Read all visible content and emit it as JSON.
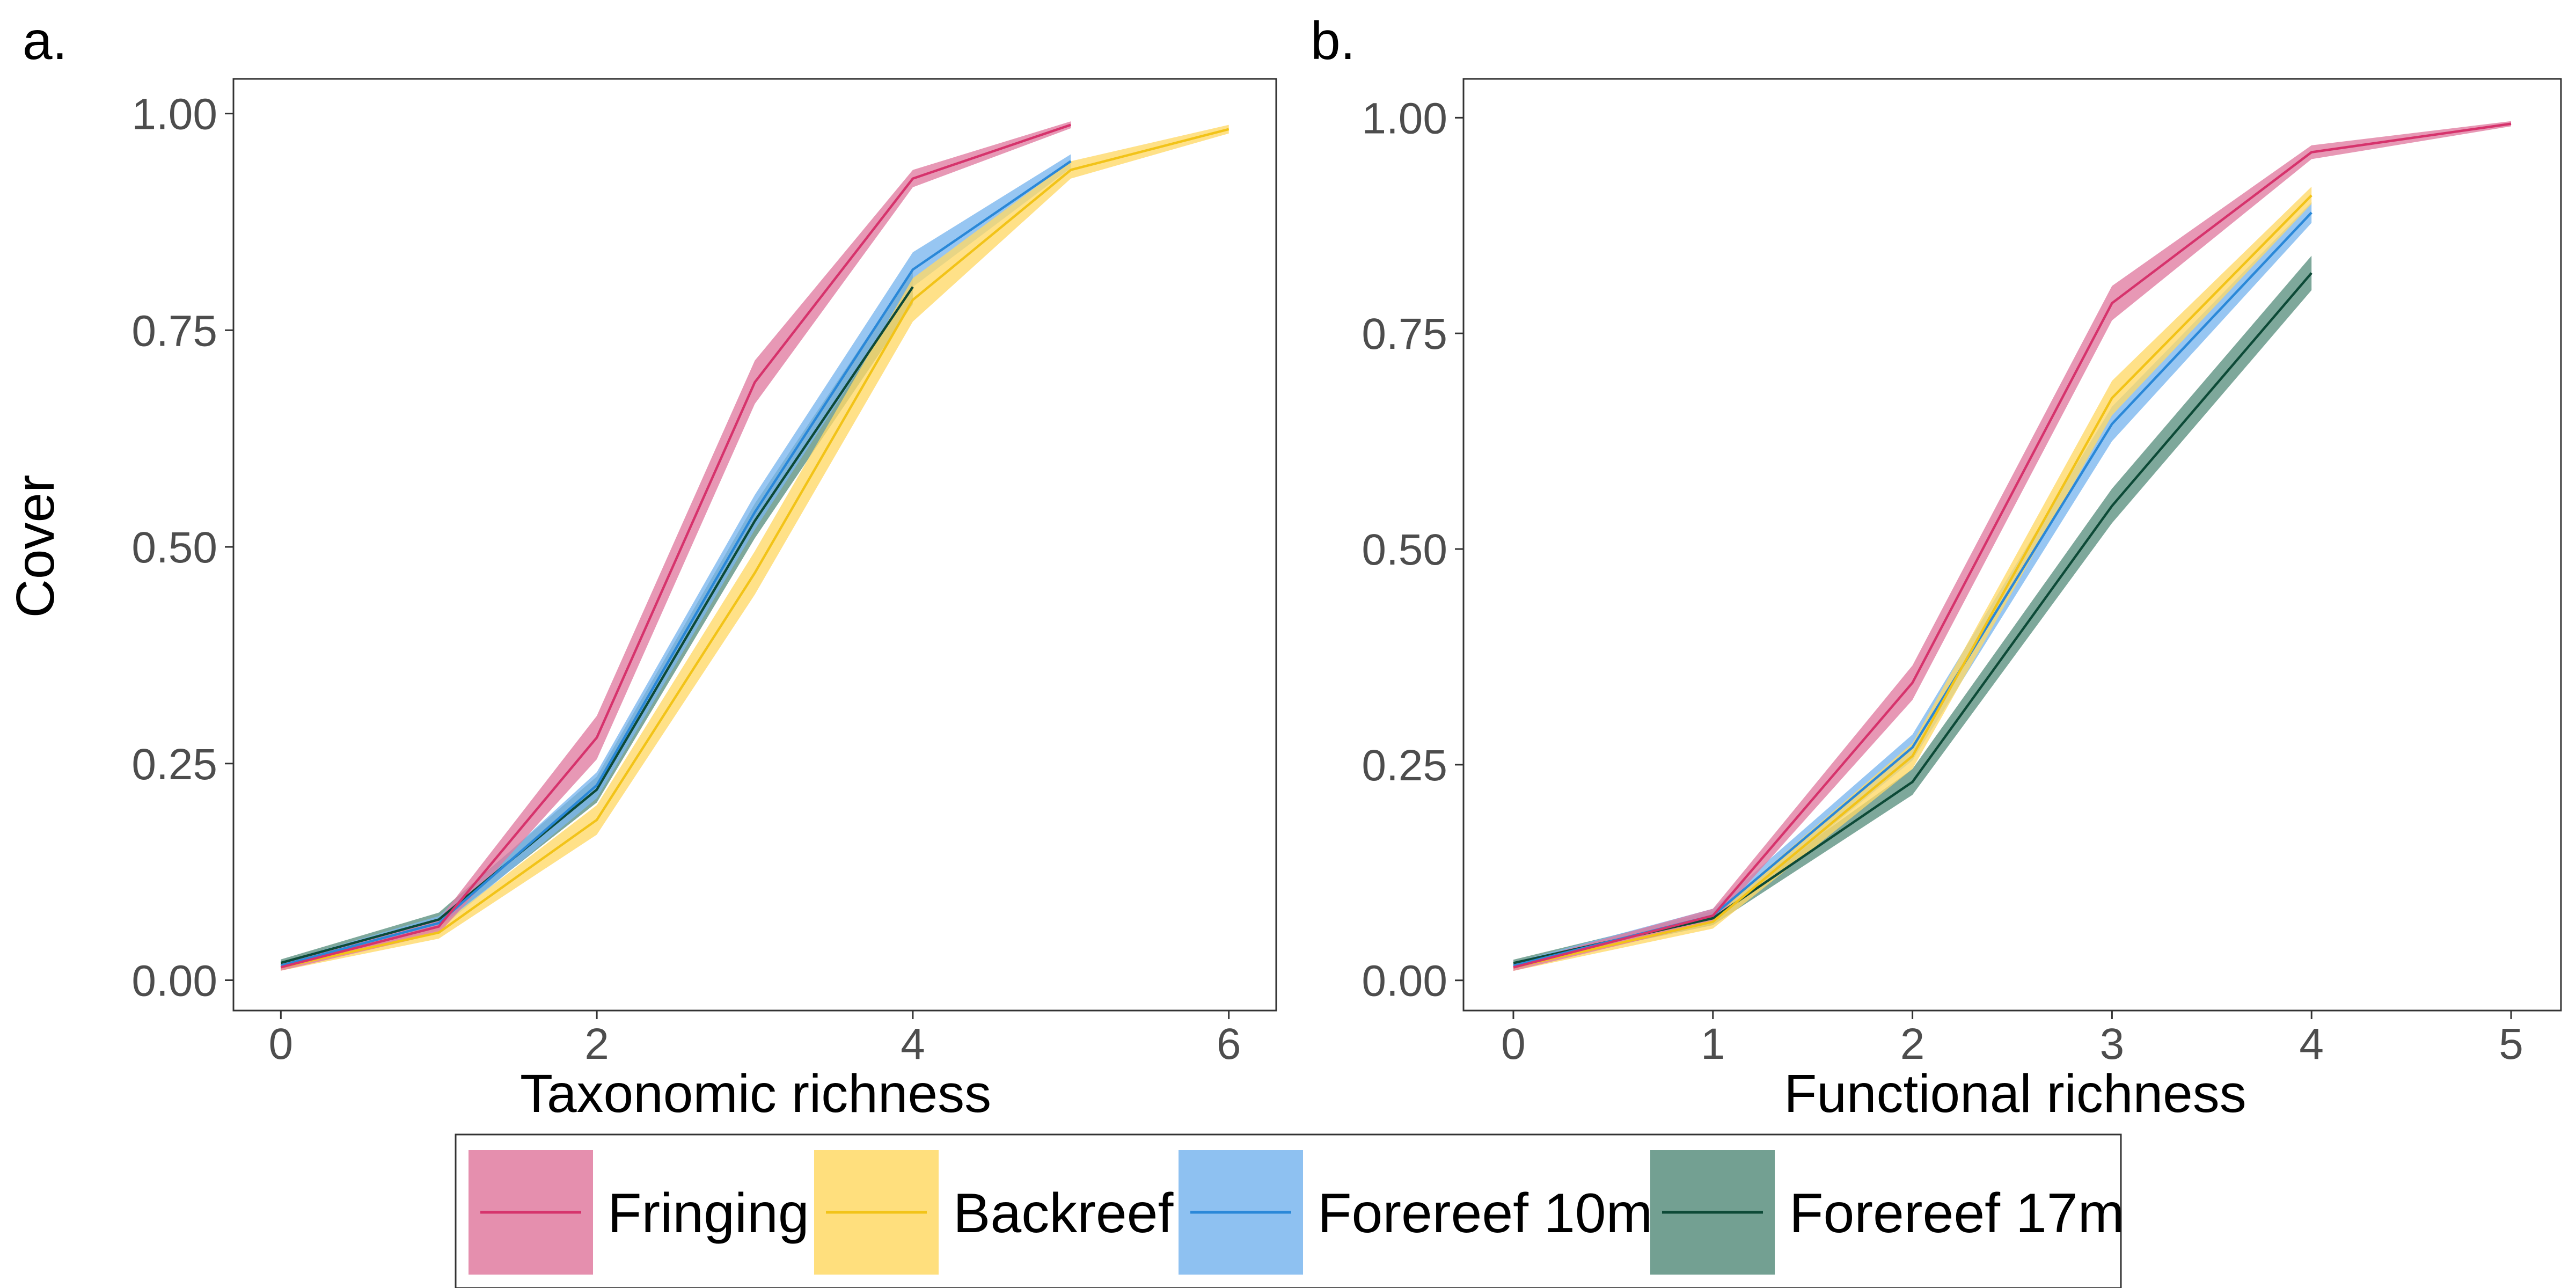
{
  "chart_data": [
    {
      "type": "line",
      "panel_label": "a.",
      "xlabel": "Taxonomic richness",
      "ylabel": "Cover",
      "xlim": [
        -0.3,
        6.3
      ],
      "ylim": [
        -0.035,
        1.04
      ],
      "xticks": [
        0,
        2,
        4,
        6
      ],
      "xtick_labels": [
        "0",
        "2",
        "4",
        "6"
      ],
      "yticks": [
        0,
        0.25,
        0.5,
        0.75,
        1.0
      ],
      "ytick_labels": [
        "0.00",
        "0.25",
        "0.50",
        "0.75",
        "1.00"
      ],
      "grid": false,
      "series": [
        {
          "name": "Forereef 17m",
          "x": [
            0,
            1,
            2,
            3,
            4
          ],
          "y": [
            0.02,
            0.07,
            0.22,
            0.53,
            0.8
          ],
          "lower": [
            0.016,
            0.062,
            0.205,
            0.51,
            0.78
          ],
          "upper": [
            0.024,
            0.078,
            0.235,
            0.55,
            0.82
          ]
        },
        {
          "name": "Forereef 10m",
          "x": [
            0,
            1,
            2,
            3,
            4,
            5
          ],
          "y": [
            0.017,
            0.066,
            0.225,
            0.54,
            0.82,
            0.945
          ],
          "lower": [
            0.013,
            0.058,
            0.21,
            0.52,
            0.8,
            0.937
          ],
          "upper": [
            0.021,
            0.074,
            0.24,
            0.56,
            0.84,
            0.953
          ]
        },
        {
          "name": "Backreef",
          "x": [
            0,
            1,
            2,
            3,
            4,
            5,
            6
          ],
          "y": [
            0.015,
            0.055,
            0.185,
            0.47,
            0.785,
            0.935,
            0.982
          ],
          "lower": [
            0.011,
            0.048,
            0.168,
            0.445,
            0.76,
            0.925,
            0.977
          ],
          "upper": [
            0.019,
            0.062,
            0.202,
            0.495,
            0.81,
            0.945,
            0.987
          ]
        },
        {
          "name": "Fringing",
          "x": [
            0,
            1,
            2,
            3,
            4,
            5
          ],
          "y": [
            0.015,
            0.062,
            0.28,
            0.69,
            0.925,
            0.987
          ],
          "lower": [
            0.011,
            0.054,
            0.255,
            0.665,
            0.915,
            0.983
          ],
          "upper": [
            0.019,
            0.07,
            0.305,
            0.715,
            0.935,
            0.991
          ]
        }
      ]
    },
    {
      "type": "line",
      "panel_label": "b.",
      "xlabel": "Functional richness",
      "ylabel": "",
      "xlim": [
        -0.25,
        5.25
      ],
      "ylim": [
        -0.035,
        1.045
      ],
      "xticks": [
        0,
        1,
        2,
        3,
        4,
        5
      ],
      "xtick_labels": [
        "0",
        "1",
        "2",
        "3",
        "4",
        "5"
      ],
      "yticks": [
        0,
        0.25,
        0.5,
        0.75,
        1.0
      ],
      "ytick_labels": [
        "0.00",
        "0.25",
        "0.50",
        "0.75",
        "1.00"
      ],
      "grid": false,
      "series": [
        {
          "name": "Forereef 17m",
          "x": [
            0,
            1,
            2,
            3,
            4
          ],
          "y": [
            0.02,
            0.072,
            0.23,
            0.55,
            0.82
          ],
          "lower": [
            0.016,
            0.064,
            0.215,
            0.53,
            0.8
          ],
          "upper": [
            0.024,
            0.08,
            0.245,
            0.57,
            0.84
          ]
        },
        {
          "name": "Forereef 10m",
          "x": [
            0,
            1,
            2,
            3,
            4
          ],
          "y": [
            0.017,
            0.075,
            0.27,
            0.645,
            0.89
          ],
          "lower": [
            0.013,
            0.067,
            0.255,
            0.625,
            0.878
          ],
          "upper": [
            0.021,
            0.083,
            0.285,
            0.665,
            0.902
          ]
        },
        {
          "name": "Backreef",
          "x": [
            0,
            1,
            2,
            3,
            4
          ],
          "y": [
            0.015,
            0.068,
            0.26,
            0.675,
            0.91
          ],
          "lower": [
            0.011,
            0.06,
            0.245,
            0.655,
            0.9
          ],
          "upper": [
            0.019,
            0.076,
            0.275,
            0.695,
            0.92
          ]
        },
        {
          "name": "Fringing",
          "x": [
            0,
            1,
            2,
            3,
            4,
            5
          ],
          "y": [
            0.015,
            0.075,
            0.345,
            0.785,
            0.96,
            0.993
          ],
          "lower": [
            0.011,
            0.067,
            0.325,
            0.765,
            0.952,
            0.99
          ],
          "upper": [
            0.019,
            0.083,
            0.365,
            0.805,
            0.968,
            0.996
          ]
        }
      ]
    }
  ],
  "legend": {
    "placement": "bottom",
    "items": [
      {
        "label": "Fringing",
        "fill": "#e07ba0",
        "line": "#d6336c"
      },
      {
        "label": "Backreef",
        "fill": "#ffd966",
        "line": "#f2c318"
      },
      {
        "label": "Forereef 10m",
        "fill": "#7ab6ee",
        "line": "#2a88d8"
      },
      {
        "label": "Forereef 17m",
        "fill": "#5a8f7f",
        "line": "#0d4a37"
      }
    ]
  },
  "series_colors": {
    "Fringing": {
      "fill": "#e07ba0",
      "line": "#d6336c"
    },
    "Backreef": {
      "fill": "#ffd966",
      "line": "#f2c318"
    },
    "Forereef 10m": {
      "fill": "#7ab6ee",
      "line": "#2a88d8"
    },
    "Forereef 17m": {
      "fill": "#5a8f7f",
      "line": "#0d4a37"
    }
  }
}
